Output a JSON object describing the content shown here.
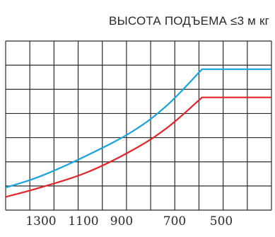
{
  "chart_data": {
    "type": "line",
    "title": "ВЫСОТА ПОДЪЕМА ≤3 м кг",
    "xlabel": "",
    "ylabel": "",
    "x_reversed": true,
    "xlim": [
      1450,
      300
    ],
    "ylim": [
      0,
      9
    ],
    "grid": true,
    "x_tick_labels": [
      "1300",
      "1100",
      "900",
      "700",
      "500"
    ],
    "x_tick_values": [
      1300,
      1100,
      900,
      700,
      500
    ],
    "series": [
      {
        "color": "#1aa3d8",
        "x": [
          1450,
          1300,
          1100,
          900,
          750,
          600,
          450,
          300
        ],
        "y": [
          1.2,
          1.8,
          2.9,
          4.2,
          5.6,
          7.5,
          7.5,
          7.5
        ]
      },
      {
        "color": "#e0262b",
        "x": [
          1450,
          1300,
          1100,
          900,
          750,
          600,
          450,
          300
        ],
        "y": [
          0.7,
          1.2,
          2.0,
          3.2,
          4.4,
          6.0,
          6.0,
          6.0
        ]
      }
    ]
  }
}
